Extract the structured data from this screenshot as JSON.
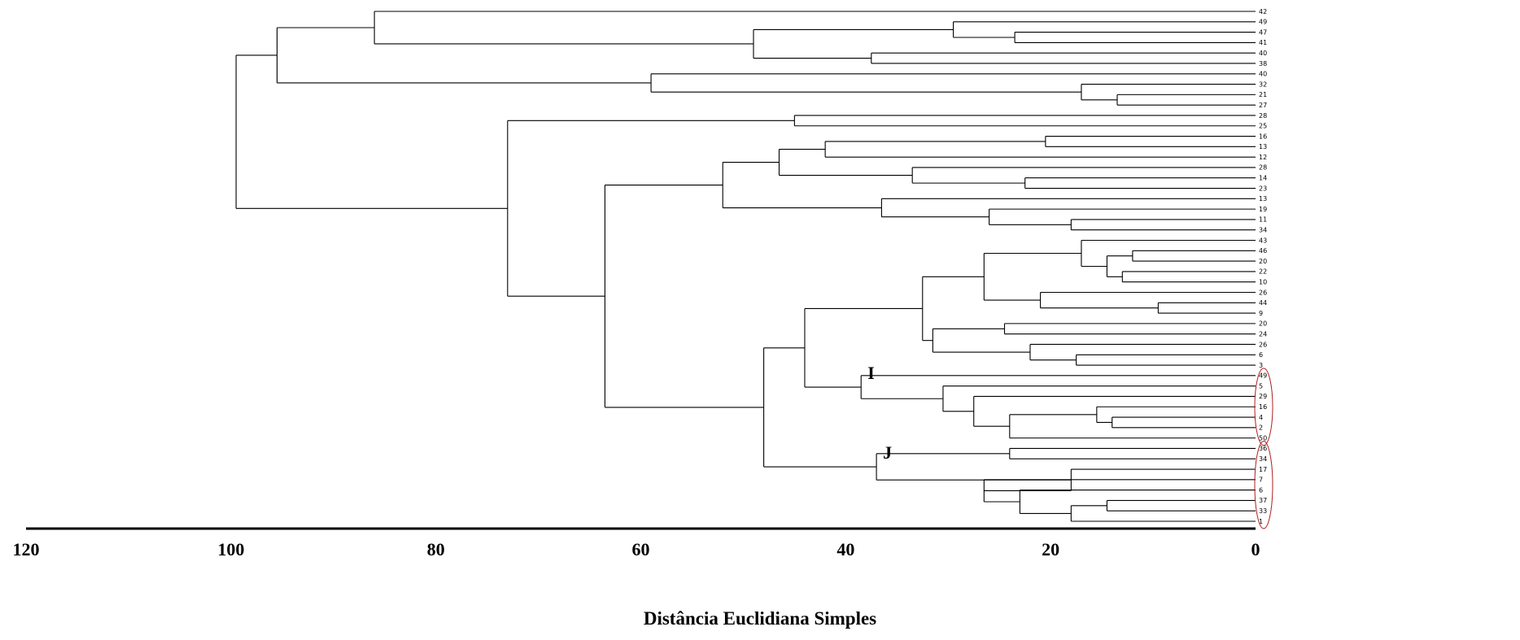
{
  "chart_data": {
    "type": "dendrogram",
    "title": "",
    "xlabel": "Distância Euclidiana Simples",
    "ylabel": "",
    "xlim": [
      120,
      0
    ],
    "x_ticks": [
      120,
      100,
      80,
      60,
      40,
      20,
      0
    ],
    "grid": false,
    "leaves": [
      "42",
      "49",
      "47",
      "41",
      "40",
      "38",
      "40",
      "32",
      "21",
      "27",
      "28",
      "25",
      "16",
      "13",
      "12",
      "28",
      "14",
      "23",
      "13",
      "19",
      "11",
      "34",
      "43",
      "46",
      "20",
      "22",
      "10",
      "26",
      "44",
      "9",
      "20",
      "24",
      "26",
      "6",
      "3",
      "49",
      "5",
      "29",
      "16",
      "4",
      "2",
      "50",
      "36",
      "34",
      "17",
      "7",
      "6",
      "37",
      "33",
      "1"
    ],
    "merges": [
      {
        "id": "n1",
        "children": [
          "l:2",
          "l:3"
        ],
        "height": 23.5
      },
      {
        "id": "n2",
        "children": [
          "l:1",
          "n:n1"
        ],
        "height": 29.5
      },
      {
        "id": "n3",
        "children": [
          "l:4",
          "l:5"
        ],
        "height": 37.5
      },
      {
        "id": "n4",
        "children": [
          "n:n2",
          "n:n3"
        ],
        "height": 49
      },
      {
        "id": "n5",
        "children": [
          "l:0",
          "n:n4"
        ],
        "height": 86
      },
      {
        "id": "n6",
        "children": [
          "l:8",
          "l:9"
        ],
        "height": 13.5
      },
      {
        "id": "n7",
        "children": [
          "l:7",
          "n:n6"
        ],
        "height": 17
      },
      {
        "id": "n8",
        "children": [
          "l:6",
          "n:n7"
        ],
        "height": 59
      },
      {
        "id": "n9",
        "children": [
          "n:n5",
          "n:n8"
        ],
        "height": 95.5
      },
      {
        "id": "n10",
        "children": [
          "l:10",
          "l:11"
        ],
        "height": 45
      },
      {
        "id": "n11",
        "children": [
          "l:12",
          "l:13"
        ],
        "height": 20.5
      },
      {
        "id": "n12",
        "children": [
          "n:n11",
          "l:14"
        ],
        "height": 42
      },
      {
        "id": "n13",
        "children": [
          "l:16",
          "l:17"
        ],
        "height": 22.5
      },
      {
        "id": "n14",
        "children": [
          "l:15",
          "n:n13"
        ],
        "height": 33.5
      },
      {
        "id": "n15",
        "children": [
          "n:n12",
          "n:n14"
        ],
        "height": 46.5
      },
      {
        "id": "n16",
        "children": [
          "l:20",
          "l:21"
        ],
        "height": 18
      },
      {
        "id": "n17",
        "children": [
          "l:19",
          "n:n16"
        ],
        "height": 26
      },
      {
        "id": "n18",
        "children": [
          "l:18",
          "n:n17"
        ],
        "height": 36.5
      },
      {
        "id": "n19",
        "children": [
          "n:n15",
          "n:n18"
        ],
        "height": 52
      },
      {
        "id": "n20",
        "children": [
          "l:23",
          "l:24"
        ],
        "height": 12
      },
      {
        "id": "n21",
        "children": [
          "l:25",
          "l:26"
        ],
        "height": 13
      },
      {
        "id": "n22",
        "children": [
          "n:n20",
          "n:n21"
        ],
        "height": 14.5
      },
      {
        "id": "n23",
        "children": [
          "l:22",
          "n:n22"
        ],
        "height": 17
      },
      {
        "id": "n24",
        "children": [
          "l:28",
          "l:29"
        ],
        "height": 9.5
      },
      {
        "id": "n25",
        "children": [
          "l:27",
          "n:n24"
        ],
        "height": 21
      },
      {
        "id": "n26",
        "children": [
          "n:n23",
          "n:n25"
        ],
        "height": 26.5
      },
      {
        "id": "n27",
        "children": [
          "l:30",
          "l:31"
        ],
        "height": 24.5
      },
      {
        "id": "n28",
        "children": [
          "l:33",
          "l:34"
        ],
        "height": 17.5
      },
      {
        "id": "n29",
        "children": [
          "l:32",
          "n:n28"
        ],
        "height": 22
      },
      {
        "id": "n30",
        "children": [
          "n:n27",
          "n:n29"
        ],
        "height": 31.5
      },
      {
        "id": "n31",
        "children": [
          "n:n26",
          "n:n30"
        ],
        "height": 32.5
      },
      {
        "id": "n32",
        "children": [
          "l:39",
          "l:40"
        ],
        "height": 14
      },
      {
        "id": "n33",
        "children": [
          "l:38",
          "n:n32"
        ],
        "height": 15.5
      },
      {
        "id": "n34",
        "children": [
          "n:n33",
          "l:41"
        ],
        "height": 24
      },
      {
        "id": "n35",
        "children": [
          "l:37",
          "n:n34"
        ],
        "height": 27.5
      },
      {
        "id": "n36",
        "children": [
          "l:36",
          "n:n35"
        ],
        "height": 30.5
      },
      {
        "id": "n37",
        "children": [
          "l:35",
          "n:n36"
        ],
        "height": 38.5
      },
      {
        "id": "n38",
        "children": [
          "n:n31",
          "n:n37"
        ],
        "height": 44
      },
      {
        "id": "n39",
        "children": [
          "l:42",
          "l:43"
        ],
        "height": 24
      },
      {
        "id": "n40",
        "children": [
          "l:47",
          "l:48"
        ],
        "height": 14.5
      },
      {
        "id": "n41",
        "children": [
          "n:n40",
          "l:49"
        ],
        "height": 18
      },
      {
        "id": "n42",
        "children": [
          "l:46",
          "n:n41"
        ],
        "height": 23
      },
      {
        "id": "n43",
        "children": [
          "l:45",
          "n:n42"
        ],
        "height": 26.5
      },
      {
        "id": "n44",
        "children": [
          "l:44",
          "n:n43"
        ],
        "height": 18
      },
      {
        "id": "n45",
        "children": [
          "n:n39",
          "n:n44"
        ],
        "height": 37
      },
      {
        "id": "n46",
        "children": [
          "n:n38",
          "n:n45"
        ],
        "height": 48
      },
      {
        "id": "n47",
        "children": [
          "n:n19",
          "n:n46"
        ],
        "height": 63.5
      },
      {
        "id": "n48",
        "children": [
          "n:n10",
          "n:n47"
        ],
        "height": 73
      },
      {
        "id": "n49",
        "children": [
          "n:n9",
          "n:n48"
        ],
        "height": 99.5
      }
    ],
    "group_labels": [
      {
        "text": "I",
        "node": "n37"
      },
      {
        "text": "J",
        "node": "n45"
      }
    ],
    "highlight_color": "#b02020",
    "highlight_leaf_ranges": [
      [
        35,
        41
      ],
      [
        42,
        49
      ]
    ]
  }
}
